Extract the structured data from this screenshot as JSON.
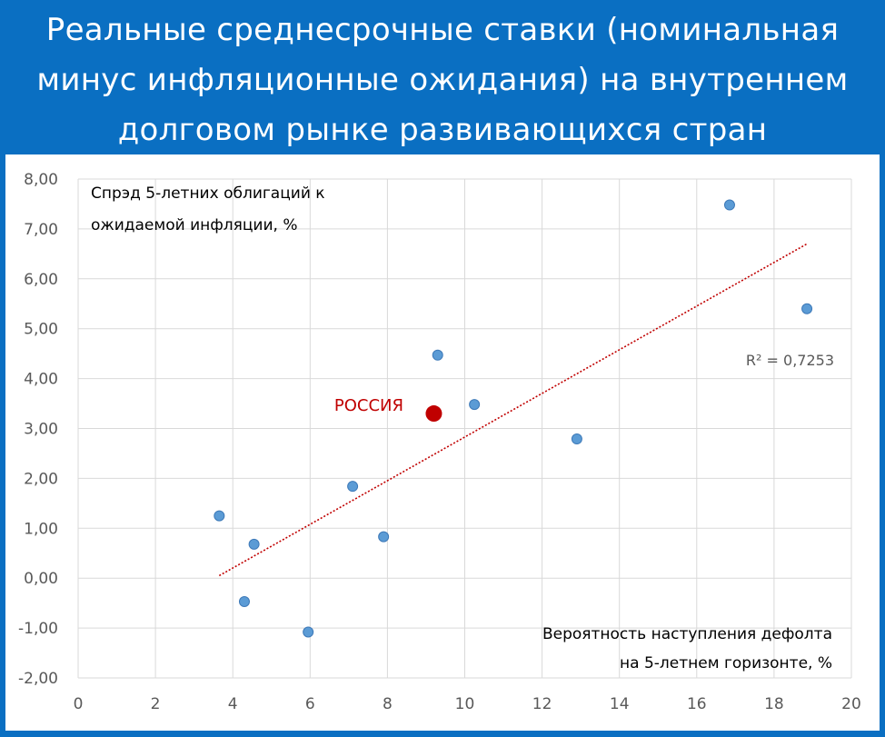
{
  "title": "Реальные среднесрочные ставки (номинальная минус инфляционные ожидания) на внутреннем долговом рынке развивающихся стран",
  "colors": {
    "header_bg": "#0a6fc2",
    "point": "#5b9bd5",
    "point_stroke": "#3d79b8",
    "highlight": "#c00000",
    "trend": "#c00000",
    "grid": "#d9d9d9"
  },
  "chart_data": {
    "type": "scatter",
    "y_label": "Спрэд 5-летних облигаций к ожидаемой инфляции, %",
    "x_label_lines": [
      "Вероятность наступления дефолта",
      "на 5-летнем горизонте, %"
    ],
    "y_label_lines": [
      "Спрэд 5-летних облигаций к",
      "ожидаемой инфляции, %"
    ],
    "xlim": [
      0,
      20
    ],
    "ylim": [
      -2,
      8
    ],
    "x_ticks": [
      0,
      2,
      4,
      6,
      8,
      10,
      12,
      14,
      16,
      18,
      20
    ],
    "y_ticks": [
      -2,
      -1,
      0,
      1,
      2,
      3,
      4,
      5,
      6,
      7,
      8
    ],
    "x_tick_labels": [
      "0",
      "2",
      "4",
      "6",
      "8",
      "10",
      "12",
      "14",
      "16",
      "18",
      "20"
    ],
    "y_tick_labels": [
      "-2,00",
      "-1,00",
      "0,00",
      "1,00",
      "2,00",
      "3,00",
      "4,00",
      "5,00",
      "6,00",
      "7,00",
      "8,00"
    ],
    "grid": true,
    "points": [
      {
        "x": 3.65,
        "y": 1.25
      },
      {
        "x": 4.3,
        "y": -0.47
      },
      {
        "x": 4.55,
        "y": 0.68
      },
      {
        "x": 5.95,
        "y": -1.08
      },
      {
        "x": 7.1,
        "y": 1.84
      },
      {
        "x": 7.9,
        "y": 0.83
      },
      {
        "x": 9.3,
        "y": 4.47
      },
      {
        "x": 10.25,
        "y": 3.48
      },
      {
        "x": 12.9,
        "y": 2.79
      },
      {
        "x": 16.85,
        "y": 7.48
      },
      {
        "x": 18.85,
        "y": 5.4
      }
    ],
    "highlight": {
      "label": "РОССИЯ",
      "x": 9.2,
      "y": 3.3
    },
    "trendline": {
      "x": [
        3.65,
        18.85
      ],
      "y": [
        0.05,
        6.7
      ],
      "r2_label": "R² = 0,7253"
    }
  }
}
